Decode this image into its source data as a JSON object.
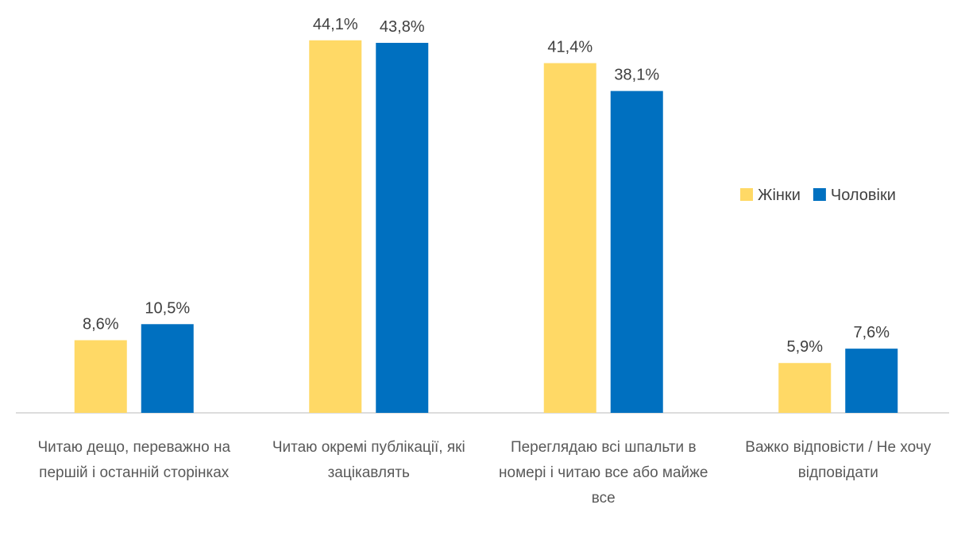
{
  "chart_data": {
    "type": "bar",
    "categories": [
      "Читаю дещо, переважно на першій і останній сторінках",
      "Читаю окремі публікації, які зацікавлять",
      "Переглядаю всі шпальти в номері і читаю все або майже все",
      "Важко відповісти / Не хочу відповідати"
    ],
    "series": [
      {
        "name": "Жінки",
        "color": "#FFD966",
        "values": [
          8.6,
          44.1,
          41.4,
          5.9
        ],
        "value_labels": [
          "8,6%",
          "44,1%",
          "41,4%",
          "5,9%"
        ]
      },
      {
        "name": "Чоловіки",
        "color": "#0070C0",
        "values": [
          10.5,
          43.8,
          38.1,
          7.6
        ],
        "value_labels": [
          "10,5%",
          "43,8%",
          "38,1%",
          "7,6%"
        ]
      }
    ],
    "legend": "right"
  }
}
